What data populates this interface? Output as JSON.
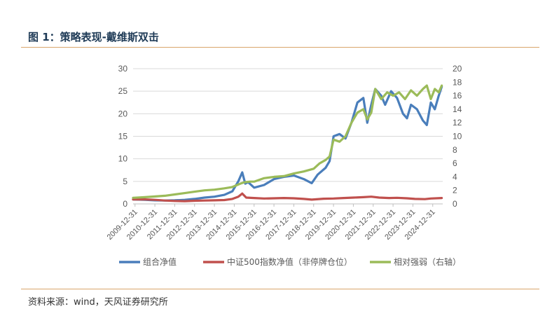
{
  "header": {
    "figure_title": "图 1：策略表现-戴维斯双击",
    "source_note": "资料来源：wind，天风证券研究所"
  },
  "chart_data": {
    "type": "line",
    "title": "",
    "y_left": {
      "ylim": [
        0,
        30
      ],
      "ticks": [
        "0",
        "5",
        "10",
        "15",
        "20",
        "25",
        "30"
      ]
    },
    "y_right": {
      "ylim": [
        0,
        20
      ],
      "ticks": [
        "0",
        "2",
        "4",
        "6",
        "8",
        "10",
        "12",
        "14",
        "16",
        "18",
        "20"
      ]
    },
    "x_ticks": [
      "2009-12-31",
      "2010-12-31",
      "2011-12-31",
      "2012-12-31",
      "2013-12-31",
      "2014-12-31",
      "2015-12-31",
      "2016-12-31",
      "2017-12-31",
      "2018-12-31",
      "2019-12-31",
      "2020-12-31",
      "2021-12-31",
      "2022-12-31",
      "2023-12-31",
      "2024-12-31"
    ],
    "x_range": [
      2009.9,
      2025.5
    ],
    "grid": "horizontal",
    "legend_position": "bottom",
    "series": [
      {
        "name": "组合净值",
        "axis": "left",
        "color": "#4a7ebb",
        "points": [
          [
            2009.9,
            1.0
          ],
          [
            2010.5,
            0.9
          ],
          [
            2011.0,
            0.8
          ],
          [
            2011.5,
            0.75
          ],
          [
            2012.0,
            0.8
          ],
          [
            2012.5,
            0.9
          ],
          [
            2013.0,
            1.1
          ],
          [
            2013.5,
            1.4
          ],
          [
            2014.0,
            1.6
          ],
          [
            2014.5,
            2.0
          ],
          [
            2014.9,
            2.8
          ],
          [
            2015.2,
            5.0
          ],
          [
            2015.4,
            7.0
          ],
          [
            2015.55,
            4.5
          ],
          [
            2015.7,
            4.8
          ],
          [
            2016.0,
            3.6
          ],
          [
            2016.5,
            4.2
          ],
          [
            2017.0,
            5.5
          ],
          [
            2017.5,
            6.0
          ],
          [
            2018.0,
            6.3
          ],
          [
            2018.5,
            5.5
          ],
          [
            2018.9,
            4.6
          ],
          [
            2019.2,
            6.5
          ],
          [
            2019.6,
            8.0
          ],
          [
            2019.8,
            9.5
          ],
          [
            2020.0,
            15.0
          ],
          [
            2020.3,
            15.5
          ],
          [
            2020.6,
            14.5
          ],
          [
            2020.9,
            18.0
          ],
          [
            2021.2,
            22.5
          ],
          [
            2021.5,
            23.5
          ],
          [
            2021.7,
            18.0
          ],
          [
            2021.9,
            22.0
          ],
          [
            2022.1,
            25.5
          ],
          [
            2022.4,
            24.0
          ],
          [
            2022.6,
            22.0
          ],
          [
            2022.9,
            25.0
          ],
          [
            2023.2,
            23.5
          ],
          [
            2023.5,
            20.0
          ],
          [
            2023.7,
            19.0
          ],
          [
            2023.9,
            22.0
          ],
          [
            2024.2,
            21.0
          ],
          [
            2024.5,
            18.5
          ],
          [
            2024.7,
            17.5
          ],
          [
            2024.9,
            22.5
          ],
          [
            2025.1,
            21.0
          ],
          [
            2025.3,
            24.0
          ],
          [
            2025.45,
            26.0
          ]
        ]
      },
      {
        "name": "中证500指数净值（非停牌仓位）",
        "axis": "left",
        "color": "#c0504d",
        "points": [
          [
            2009.9,
            1.0
          ],
          [
            2010.5,
            1.0
          ],
          [
            2011.0,
            0.9
          ],
          [
            2011.5,
            0.75
          ],
          [
            2012.0,
            0.65
          ],
          [
            2012.5,
            0.6
          ],
          [
            2013.0,
            0.7
          ],
          [
            2013.5,
            0.75
          ],
          [
            2014.0,
            0.8
          ],
          [
            2014.5,
            0.85
          ],
          [
            2014.9,
            1.1
          ],
          [
            2015.2,
            1.6
          ],
          [
            2015.4,
            2.3
          ],
          [
            2015.6,
            1.4
          ],
          [
            2016.0,
            1.3
          ],
          [
            2016.5,
            1.2
          ],
          [
            2017.0,
            1.25
          ],
          [
            2017.5,
            1.3
          ],
          [
            2018.0,
            1.25
          ],
          [
            2018.5,
            1.1
          ],
          [
            2018.9,
            0.95
          ],
          [
            2019.5,
            1.15
          ],
          [
            2020.0,
            1.2
          ],
          [
            2020.5,
            1.3
          ],
          [
            2021.0,
            1.4
          ],
          [
            2021.5,
            1.5
          ],
          [
            2021.9,
            1.6
          ],
          [
            2022.3,
            1.4
          ],
          [
            2022.8,
            1.3
          ],
          [
            2023.2,
            1.35
          ],
          [
            2023.7,
            1.25
          ],
          [
            2024.1,
            1.1
          ],
          [
            2024.6,
            1.05
          ],
          [
            2024.9,
            1.2
          ],
          [
            2025.45,
            1.3
          ]
        ]
      },
      {
        "name": "相对强弱（右轴）",
        "axis": "right",
        "color": "#9bbb59",
        "points": [
          [
            2009.9,
            0.9
          ],
          [
            2010.5,
            1.0
          ],
          [
            2011.0,
            1.1
          ],
          [
            2011.5,
            1.2
          ],
          [
            2012.0,
            1.4
          ],
          [
            2012.5,
            1.6
          ],
          [
            2013.0,
            1.8
          ],
          [
            2013.5,
            2.0
          ],
          [
            2014.0,
            2.1
          ],
          [
            2014.5,
            2.3
          ],
          [
            2014.9,
            2.5
          ],
          [
            2015.3,
            3.0
          ],
          [
            2015.5,
            3.2
          ],
          [
            2015.8,
            3.3
          ],
          [
            2016.0,
            3.3
          ],
          [
            2016.5,
            3.8
          ],
          [
            2017.0,
            4.0
          ],
          [
            2017.5,
            4.1
          ],
          [
            2018.0,
            4.5
          ],
          [
            2018.5,
            4.8
          ],
          [
            2019.0,
            5.2
          ],
          [
            2019.3,
            6.0
          ],
          [
            2019.6,
            6.5
          ],
          [
            2019.8,
            7.0
          ],
          [
            2020.0,
            9.5
          ],
          [
            2020.3,
            9.2
          ],
          [
            2020.6,
            10.0
          ],
          [
            2020.9,
            12.0
          ],
          [
            2021.2,
            13.5
          ],
          [
            2021.5,
            14.0
          ],
          [
            2021.7,
            12.5
          ],
          [
            2021.9,
            13.5
          ],
          [
            2022.1,
            17.0
          ],
          [
            2022.4,
            15.5
          ],
          [
            2022.7,
            16.5
          ],
          [
            2023.0,
            16.0
          ],
          [
            2023.3,
            16.5
          ],
          [
            2023.6,
            15.5
          ],
          [
            2023.9,
            16.8
          ],
          [
            2024.2,
            16.0
          ],
          [
            2024.5,
            17.0
          ],
          [
            2024.7,
            17.5
          ],
          [
            2024.9,
            15.5
          ],
          [
            2025.1,
            17.0
          ],
          [
            2025.3,
            16.5
          ],
          [
            2025.45,
            17.5
          ]
        ]
      }
    ]
  }
}
